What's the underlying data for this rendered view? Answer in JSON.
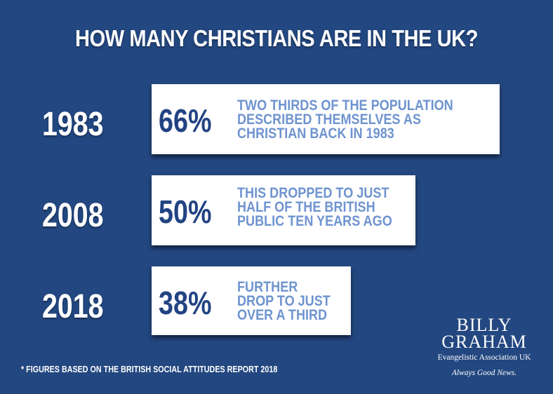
{
  "chart_data": {
    "type": "table",
    "title": "HOW MANY CHRISTIANS ARE IN THE UK?",
    "rows": [
      {
        "year": "1983",
        "value": 66,
        "label": "66%",
        "description": [
          "TWO THIRDS OF THE POPULATION",
          "DESCRIBED THEMSELVES AS",
          "CHRISTIAN BACK IN 1983"
        ]
      },
      {
        "year": "2008",
        "value": 50,
        "label": "50%",
        "description": [
          "THIS DROPPED TO JUST",
          "HALF OF THE BRITISH",
          "PUBLIC TEN YEARS AGO"
        ]
      },
      {
        "year": "2018",
        "value": 38,
        "label": "38%",
        "description": [
          "FURTHER",
          "DROP TO JUST",
          "OVER A THIRD"
        ]
      }
    ],
    "footnote": "* FIGURES BASED ON THE BRITISH SOCIAL ATTITUDES REPORT 2018"
  },
  "logo": {
    "line1": "BILLY",
    "line2": "GRAHAM",
    "line3": "Evangelistic Association UK",
    "tagline": "Always Good News."
  },
  "colors": {
    "background": "#234780",
    "card": "#ffffff",
    "percent": "#224383",
    "description": "#6f94cf"
  }
}
